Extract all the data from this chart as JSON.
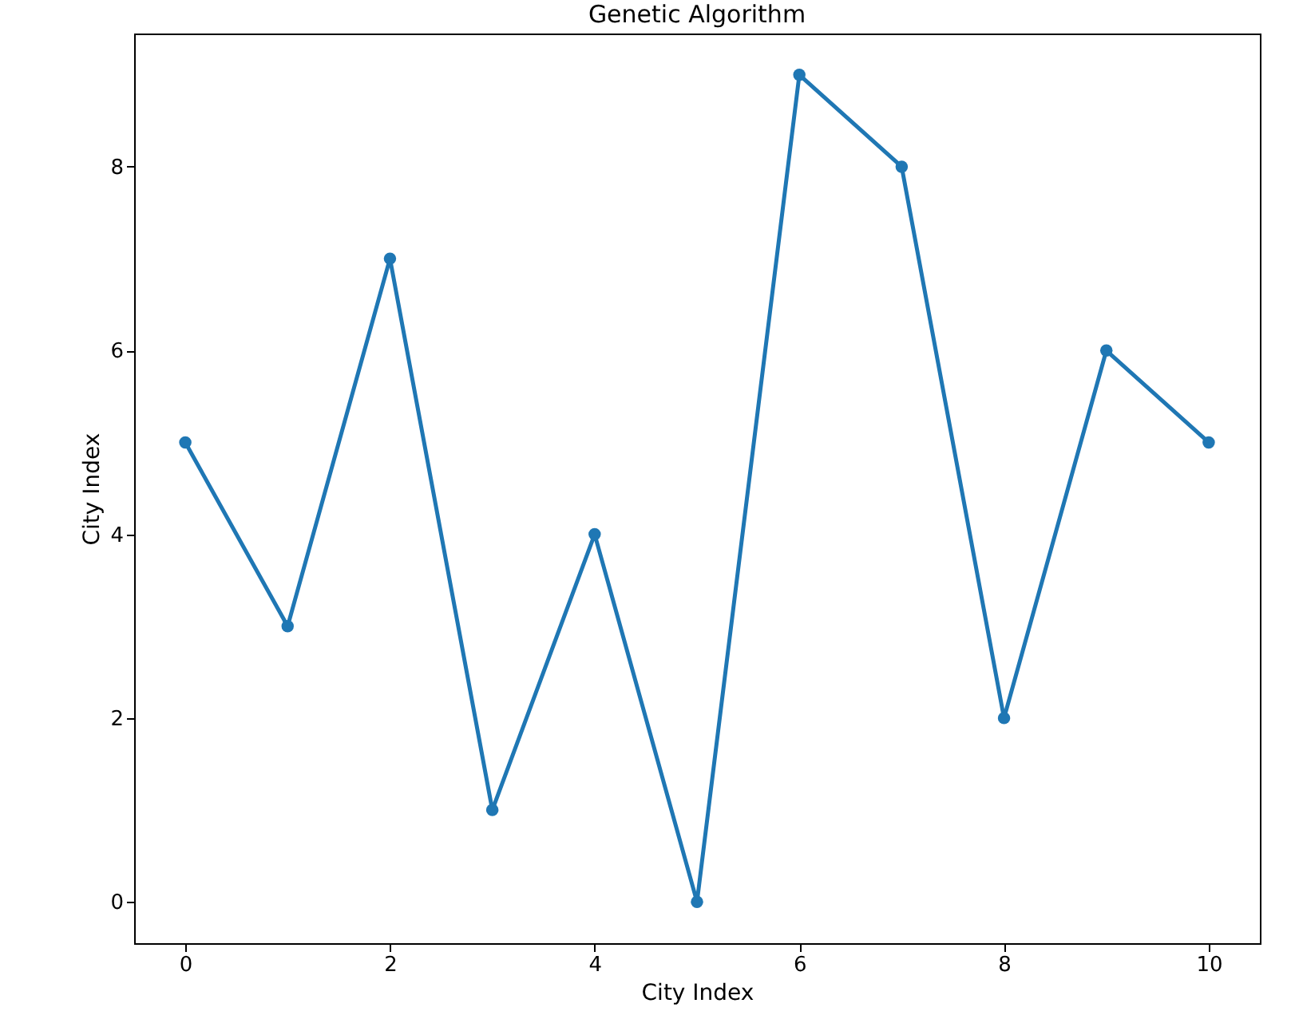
{
  "chart_data": {
    "type": "line",
    "title": "Genetic Algorithm",
    "xlabel": "City Index",
    "ylabel": "City Index",
    "x": [
      0,
      1,
      2,
      3,
      4,
      5,
      6,
      7,
      8,
      9,
      10
    ],
    "series": [
      {
        "color": "#1f77b4",
        "values": [
          5,
          3,
          7,
          1,
          4,
          0,
          9,
          8,
          2,
          6,
          5
        ]
      }
    ],
    "xlim": [
      -0.5,
      10.5
    ],
    "ylim": [
      -0.45,
      9.45
    ],
    "xticks": [
      0,
      2,
      4,
      6,
      8,
      10
    ],
    "yticks": [
      0,
      2,
      4,
      6,
      8
    ],
    "marker": "circle",
    "line_style": "solid",
    "grid": false
  }
}
